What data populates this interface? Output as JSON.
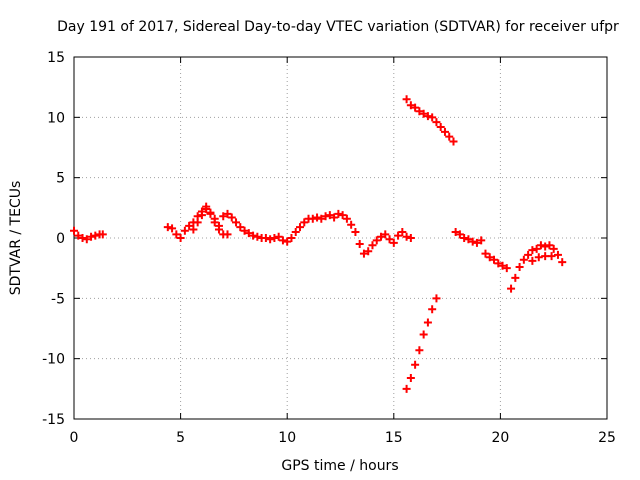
{
  "chart_data": {
    "type": "scatter",
    "title": "Day 191 of 2017, Sidereal Day-to-day VTEC variation (SDTVAR) for receiver ufpr",
    "xlabel": "GPS time / hours",
    "ylabel": "SDTVAR / TECUs",
    "xlim": [
      0,
      25
    ],
    "ylim": [
      -15,
      15
    ],
    "x_ticks": [
      0,
      5,
      10,
      15,
      20,
      25
    ],
    "y_ticks": [
      -15,
      -10,
      -5,
      0,
      5,
      10,
      15
    ],
    "x_tick_labels": [
      "0",
      "5",
      "10",
      "15",
      "20",
      "25"
    ],
    "y_tick_labels": [
      "-15",
      "-10",
      "-5",
      "0",
      "5",
      "10",
      "15"
    ],
    "grid": true,
    "marker": "plus",
    "series": [
      {
        "name": "SDTVAR",
        "color": "#ff0000",
        "x": [
          0.0,
          0.2,
          0.4,
          0.6,
          0.8,
          1.0,
          1.2,
          1.35,
          4.4,
          4.6,
          4.8,
          5.0,
          5.2,
          5.4,
          5.6,
          5.8,
          6.0,
          6.2,
          6.4,
          6.6,
          6.8,
          7.0,
          7.2,
          5.6,
          5.8,
          6.0,
          6.2,
          6.4,
          6.6,
          6.8,
          7.0,
          7.2,
          7.4,
          7.6,
          7.8,
          8.0,
          8.2,
          8.4,
          8.6,
          8.8,
          9.0,
          9.2,
          9.4,
          9.6,
          9.8,
          10.0,
          10.2,
          10.4,
          10.6,
          10.8,
          11.0,
          11.2,
          11.4,
          11.6,
          11.8,
          12.0,
          12.2,
          12.4,
          12.6,
          12.8,
          13.0,
          13.2,
          13.4,
          13.6,
          13.8,
          14.0,
          14.2,
          14.4,
          14.6,
          14.8,
          15.0,
          15.2,
          15.4,
          15.6,
          15.8,
          15.6,
          15.8,
          16.0,
          16.2,
          16.4,
          16.6,
          16.8,
          17.0,
          17.2,
          17.4,
          17.6,
          17.8,
          15.6,
          15.8,
          16.0,
          16.2,
          16.4,
          16.6,
          16.8,
          17.0,
          17.9,
          18.1,
          18.3,
          18.5,
          18.7,
          18.9,
          19.1,
          19.3,
          19.5,
          19.7,
          19.9,
          20.1,
          20.3,
          20.5,
          20.7,
          20.9,
          21.1,
          21.3,
          21.5,
          21.7,
          21.9,
          22.1,
          22.3,
          22.5,
          22.7,
          22.9,
          21.5,
          21.8,
          22.1,
          22.4
        ],
        "y": [
          0.6,
          0.2,
          0.0,
          -0.1,
          0.1,
          0.2,
          0.3,
          0.3,
          0.9,
          0.8,
          0.3,
          0.0,
          0.6,
          1.0,
          1.3,
          1.8,
          2.2,
          2.6,
          2.0,
          1.3,
          0.7,
          0.3,
          0.3,
          0.7,
          1.3,
          1.9,
          2.4,
          2.1,
          1.6,
          1.0,
          1.8,
          2.0,
          1.7,
          1.3,
          0.9,
          0.6,
          0.4,
          0.2,
          0.1,
          0.0,
          0.0,
          -0.1,
          0.0,
          0.1,
          -0.2,
          -0.3,
          0.0,
          0.5,
          0.9,
          1.3,
          1.6,
          1.6,
          1.7,
          1.6,
          1.8,
          1.9,
          1.7,
          2.0,
          1.9,
          1.6,
          1.1,
          0.5,
          -0.5,
          -1.3,
          -1.1,
          -0.6,
          -0.2,
          0.1,
          0.3,
          -0.1,
          -0.4,
          0.2,
          0.5,
          0.1,
          0.0,
          11.5,
          11.0,
          10.8,
          10.5,
          10.3,
          10.1,
          10.0,
          9.6,
          9.2,
          8.8,
          8.4,
          8.0,
          -12.5,
          -11.6,
          -10.5,
          -9.3,
          -8.0,
          -7.0,
          -5.9,
          -5.0,
          0.5,
          0.3,
          0.0,
          -0.1,
          -0.3,
          -0.4,
          -0.2,
          -1.3,
          -1.6,
          -1.8,
          -2.1,
          -2.3,
          -2.5,
          -4.2,
          -3.3,
          -2.4,
          -1.8,
          -1.4,
          -1.0,
          -0.9,
          -0.6,
          -0.7,
          -0.6,
          -0.9,
          -1.4,
          -2.0,
          -1.9,
          -1.6,
          -1.5,
          -1.5
        ]
      }
    ]
  }
}
